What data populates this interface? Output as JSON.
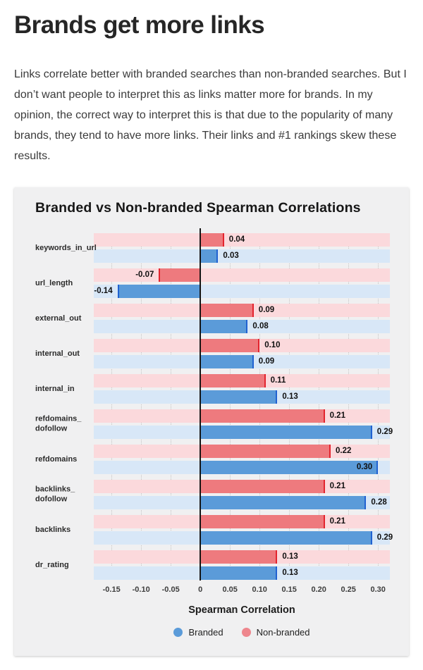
{
  "page": {
    "heading": "Brands get more links",
    "paragraph": "Links correlate better with branded searches than non-branded searches. But I don’t want people to interpret this as links matter more for brands. In my opinion, the correct way to interpret this is that due to the popularity of many brands, they tend to have more links. Their links and #1 rankings skew these results."
  },
  "chart_data": {
    "type": "bar",
    "orientation": "horizontal",
    "title": "Branded vs Non-branded Spearman Correlations",
    "xlabel": "Spearman Correlation",
    "categories": [
      "keywords_in_url",
      "url_length",
      "external_out",
      "internal_out",
      "internal_in",
      "refdomains_\ndofollow",
      "refdomains",
      "backlinks_\ndofollow",
      "backlinks",
      "dr_rating"
    ],
    "series": [
      {
        "name": "Branded",
        "values": [
          0.03,
          -0.14,
          0.08,
          0.09,
          0.13,
          0.29,
          0.3,
          0.28,
          0.29,
          0.13
        ],
        "bar_color": "#5b9bd9",
        "edge_color": "#2162d1",
        "band_color": "#d8e7f7"
      },
      {
        "name": "Non-branded",
        "values": [
          0.04,
          -0.07,
          0.09,
          0.1,
          0.11,
          0.21,
          0.22,
          0.21,
          0.21,
          0.13
        ],
        "bar_color": "#ee7a7e",
        "edge_color": "#e3242e",
        "band_color": "#fbd9dc"
      }
    ],
    "xlim": [
      -0.18,
      0.32
    ],
    "xticks": [
      -0.15,
      -0.1,
      -0.05,
      0,
      0.05,
      0.1,
      0.15,
      0.2,
      0.25,
      0.3
    ],
    "xtick_labels": [
      "-0.15",
      "-0.10",
      "-0.05",
      "0",
      "0.05",
      "0.10",
      "0.15",
      "0.20",
      "0.25",
      "0.30"
    ],
    "grid": "dotted-vertical",
    "zero_line_color": "#151515",
    "legend_position": "bottom",
    "legend": [
      {
        "label": "Branded",
        "color": "#5b9bd9"
      },
      {
        "label": "Non-branded",
        "color": "#ee868d"
      }
    ]
  }
}
